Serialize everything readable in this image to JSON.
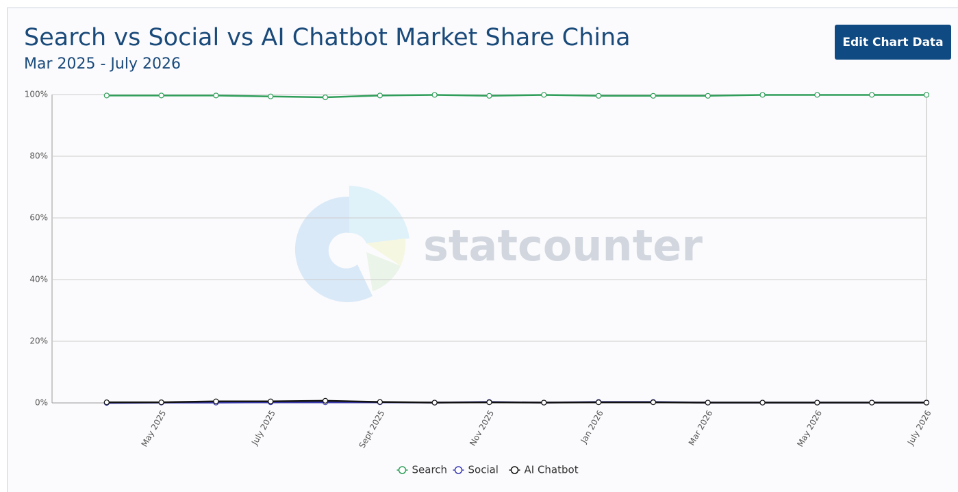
{
  "chart_data": {
    "type": "line",
    "title": "Search vs Social vs AI Chatbot Market Share China",
    "subtitle": "Mar 2025 - July 2026",
    "categories": [
      null,
      "May 2025",
      null,
      "July 2025",
      null,
      "Sept 2025",
      null,
      "Nov 2025",
      null,
      "Jan 2026",
      null,
      "Mar 2026",
      null,
      "May 2026",
      null,
      "July 2026"
    ],
    "series": [
      {
        "name": "Search",
        "color": "#2f9e5a",
        "values": [
          99.7,
          99.7,
          99.7,
          99.4,
          99.1,
          99.7,
          99.9,
          99.6,
          99.9,
          99.6,
          99.6,
          99.6,
          99.9,
          99.9,
          99.9,
          99.9
        ]
      },
      {
        "name": "Social",
        "color": "#3b3bb3",
        "values": [
          0.0,
          0.1,
          0.1,
          0.2,
          0.2,
          0.2,
          0.1,
          0.3,
          0.1,
          0.3,
          0.3,
          0.1,
          0.1,
          0.1,
          0.1,
          0.1
        ]
      },
      {
        "name": "AI Chatbot",
        "color": "#111111",
        "values": [
          0.2,
          0.2,
          0.5,
          0.5,
          0.7,
          0.3,
          0.1,
          0.2,
          0.1,
          0.2,
          0.2,
          0.1,
          0.1,
          0.1,
          0.1,
          0.1
        ]
      }
    ],
    "ylim": [
      0,
      100
    ],
    "yticks": [
      {
        "value": 0,
        "label": "0%"
      },
      {
        "value": 20,
        "label": "20%"
      },
      {
        "value": 40,
        "label": "40%"
      },
      {
        "value": 60,
        "label": "60%"
      },
      {
        "value": 80,
        "label": "80%"
      },
      {
        "value": 100,
        "label": "100%"
      }
    ],
    "grid": true,
    "legend": "bottom"
  },
  "ui": {
    "edit_button": "Edit Chart Data",
    "watermark": "statcounter"
  }
}
